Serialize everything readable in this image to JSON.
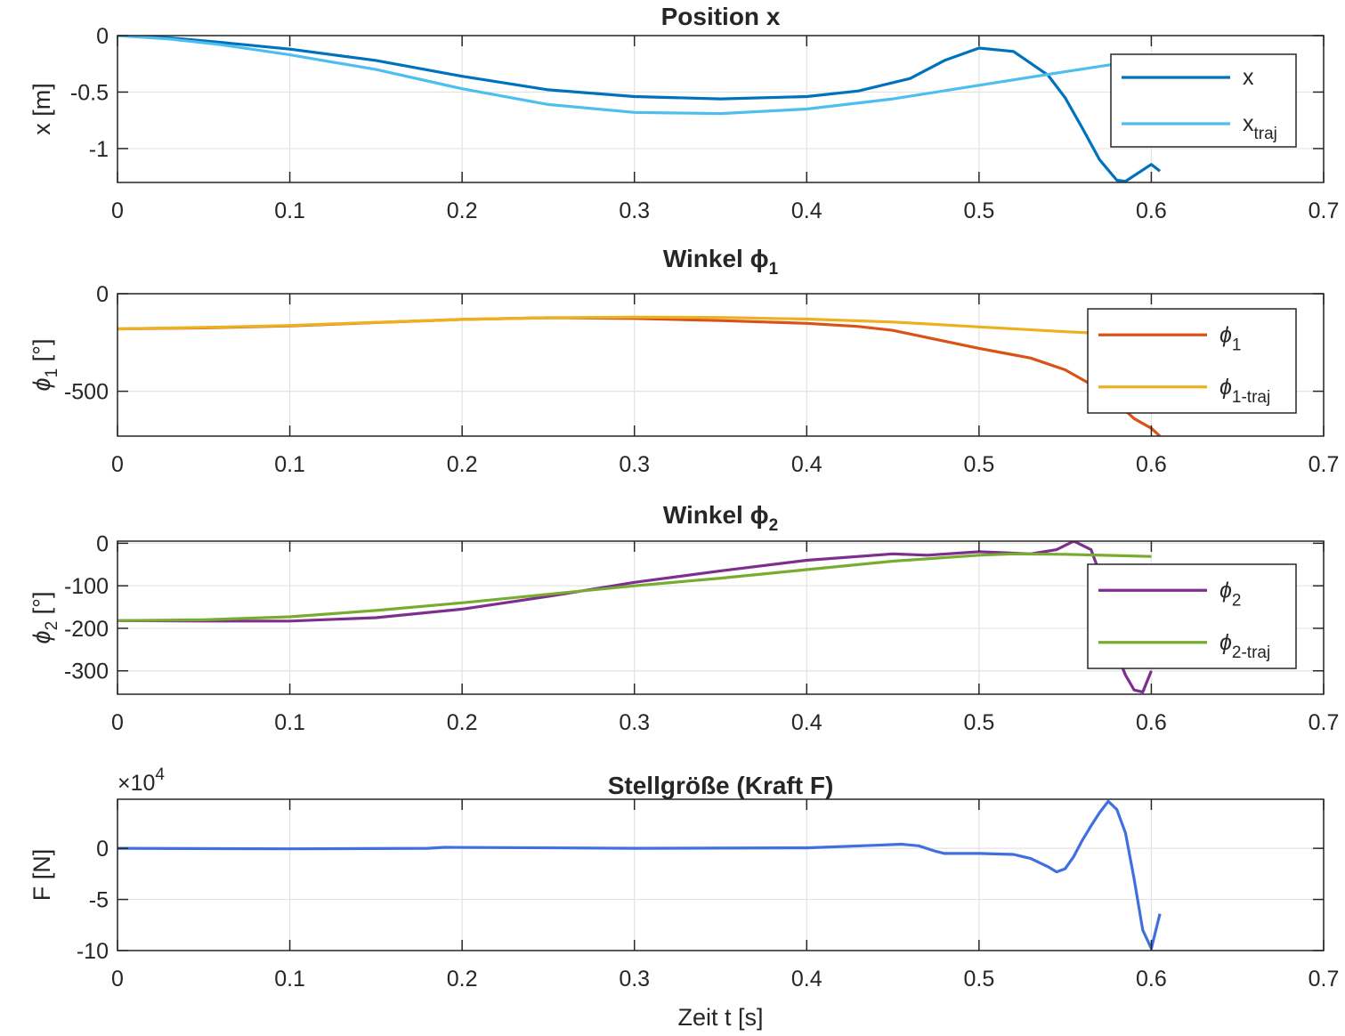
{
  "chart_data": [
    {
      "type": "line",
      "title": "Position x",
      "ylabel": "x [m]",
      "xlabel": "",
      "xlim": [
        0,
        0.7
      ],
      "ylim": [
        -1.3,
        0
      ],
      "xticks": [
        0,
        0.1,
        0.2,
        0.3,
        0.4,
        0.5,
        0.6,
        0.7
      ],
      "xtick_labels": [
        "0",
        "0.1",
        "0.2",
        "0.3",
        "0.4",
        "0.5",
        "0.6",
        "0.7"
      ],
      "yticks": [
        0,
        -0.5,
        -1
      ],
      "ytick_labels": [
        "0",
        "-0.5",
        "-1"
      ],
      "grid": true,
      "legend_position": "top-right",
      "series": [
        {
          "name": "x",
          "label_main": "x",
          "label_sub": "",
          "color": "#0072BD",
          "x": [
            0,
            0.03,
            0.06,
            0.1,
            0.15,
            0.2,
            0.25,
            0.3,
            0.35,
            0.4,
            0.43,
            0.46,
            0.48,
            0.5,
            0.52,
            0.54,
            0.55,
            0.56,
            0.57,
            0.58,
            0.585,
            0.59,
            0.6,
            0.605
          ],
          "y": [
            0,
            -0.02,
            -0.06,
            -0.12,
            -0.22,
            -0.36,
            -0.48,
            -0.54,
            -0.56,
            -0.54,
            -0.49,
            -0.38,
            -0.22,
            -0.11,
            -0.14,
            -0.35,
            -0.55,
            -0.82,
            -1.1,
            -1.28,
            -1.29,
            -1.24,
            -1.14,
            -1.2
          ]
        },
        {
          "name": "x_traj",
          "label_main": "x",
          "label_sub": "traj",
          "color": "#4DBEEE",
          "x": [
            0,
            0.03,
            0.06,
            0.1,
            0.15,
            0.2,
            0.25,
            0.3,
            0.35,
            0.4,
            0.45,
            0.5,
            0.55,
            0.58
          ],
          "y": [
            0,
            -0.03,
            -0.08,
            -0.17,
            -0.3,
            -0.47,
            -0.61,
            -0.68,
            -0.69,
            -0.65,
            -0.56,
            -0.44,
            -0.32,
            -0.25
          ]
        }
      ]
    },
    {
      "type": "line",
      "title_main": "Winkel ϕ",
      "title_sub": "1",
      "ylabel_main": "ϕ",
      "ylabel_sub": "1",
      "ylabel_suffix": " [°]",
      "xlabel": "",
      "xlim": [
        0,
        0.7
      ],
      "ylim": [
        -730,
        0
      ],
      "xticks": [
        0,
        0.1,
        0.2,
        0.3,
        0.4,
        0.5,
        0.6,
        0.7
      ],
      "xtick_labels": [
        "0",
        "0.1",
        "0.2",
        "0.3",
        "0.4",
        "0.5",
        "0.6",
        "0.7"
      ],
      "yticks": [
        0,
        -500
      ],
      "ytick_labels": [
        "0",
        "-500"
      ],
      "grid": true,
      "legend_position": "right",
      "series": [
        {
          "name": "ϕ_1",
          "label_main": "ϕ",
          "label_sub": "1",
          "color": "#D95319",
          "x": [
            0,
            0.05,
            0.1,
            0.15,
            0.2,
            0.25,
            0.3,
            0.35,
            0.4,
            0.43,
            0.45,
            0.47,
            0.5,
            0.53,
            0.55,
            0.57,
            0.58,
            0.59,
            0.6,
            0.605
          ],
          "y": [
            -180,
            -175,
            -165,
            -148,
            -132,
            -123,
            -127,
            -138,
            -152,
            -168,
            -188,
            -225,
            -280,
            -330,
            -390,
            -490,
            -560,
            -640,
            -690,
            -730
          ]
        },
        {
          "name": "ϕ_1-traj",
          "label_main": "ϕ",
          "label_sub": "1-traj",
          "color": "#EDB120",
          "x": [
            0,
            0.05,
            0.1,
            0.15,
            0.2,
            0.25,
            0.3,
            0.35,
            0.4,
            0.45,
            0.5,
            0.55,
            0.575
          ],
          "y": [
            -180,
            -173,
            -163,
            -147,
            -132,
            -123,
            -120,
            -122,
            -130,
            -145,
            -170,
            -195,
            -205
          ]
        }
      ]
    },
    {
      "type": "line",
      "title_main": "Winkel ϕ",
      "title_sub": "2",
      "ylabel_main": "ϕ",
      "ylabel_sub": "2",
      "ylabel_suffix": " [°]",
      "xlabel": "",
      "xlim": [
        0,
        0.7
      ],
      "ylim": [
        -355,
        5
      ],
      "xticks": [
        0,
        0.1,
        0.2,
        0.3,
        0.4,
        0.5,
        0.6,
        0.7
      ],
      "xtick_labels": [
        "0",
        "0.1",
        "0.2",
        "0.3",
        "0.4",
        "0.5",
        "0.6",
        "0.7"
      ],
      "yticks": [
        0,
        -100,
        -200,
        -300
      ],
      "ytick_labels": [
        "0",
        "-100",
        "-200",
        "-300"
      ],
      "grid": true,
      "legend_position": "right",
      "series": [
        {
          "name": "ϕ_2",
          "label_main": "ϕ",
          "label_sub": "2",
          "color": "#7E2F8E",
          "x": [
            0,
            0.05,
            0.1,
            0.15,
            0.2,
            0.25,
            0.3,
            0.35,
            0.4,
            0.45,
            0.47,
            0.5,
            0.53,
            0.545,
            0.555,
            0.565,
            0.57,
            0.575,
            0.58,
            0.585,
            0.59,
            0.595,
            0.6
          ],
          "y": [
            -182,
            -183,
            -183,
            -175,
            -155,
            -125,
            -92,
            -65,
            -40,
            -25,
            -28,
            -20,
            -25,
            -15,
            5,
            -15,
            -70,
            -160,
            -260,
            -310,
            -345,
            -350,
            -300
          ]
        },
        {
          "name": "ϕ_2-traj",
          "label_main": "ϕ",
          "label_sub": "2-traj",
          "color": "#77AC30",
          "x": [
            0,
            0.05,
            0.1,
            0.15,
            0.2,
            0.25,
            0.3,
            0.35,
            0.4,
            0.45,
            0.5,
            0.52,
            0.55,
            0.6
          ],
          "y": [
            -182,
            -180,
            -173,
            -158,
            -140,
            -120,
            -100,
            -82,
            -62,
            -42,
            -28,
            -25,
            -26,
            -31
          ]
        }
      ]
    },
    {
      "type": "line",
      "title": "Stellgröße (Kraft F)",
      "ylabel": "F [N]",
      "xlabel": "Zeit t [s]",
      "exponent_prefix": "×10",
      "exponent_power": "4",
      "xlim": [
        0,
        0.7
      ],
      "ylim": [
        -10,
        4.8
      ],
      "xticks": [
        0,
        0.1,
        0.2,
        0.3,
        0.4,
        0.5,
        0.6,
        0.7
      ],
      "xtick_labels": [
        "0",
        "0.1",
        "0.2",
        "0.3",
        "0.4",
        "0.5",
        "0.6",
        "0.7"
      ],
      "yticks": [
        0,
        -5,
        -10
      ],
      "ytick_labels": [
        "0",
        "-5",
        "-10"
      ],
      "grid": true,
      "series": [
        {
          "name": "F",
          "color": "#4070E0",
          "x": [
            0,
            0.1,
            0.18,
            0.19,
            0.3,
            0.4,
            0.44,
            0.455,
            0.465,
            0.475,
            0.48,
            0.5,
            0.52,
            0.53,
            0.54,
            0.545,
            0.55,
            0.555,
            0.56,
            0.565,
            0.57,
            0.575,
            0.58,
            0.585,
            0.59,
            0.595,
            0.6,
            0.605
          ],
          "y": [
            0,
            -0.05,
            0,
            0.1,
            0,
            0.05,
            0.3,
            0.4,
            0.25,
            -0.3,
            -0.5,
            -0.5,
            -0.6,
            -1.0,
            -1.8,
            -2.3,
            -2.0,
            -0.8,
            0.8,
            2.2,
            3.5,
            4.6,
            3.8,
            1.5,
            -3.0,
            -8.0,
            -9.8,
            -6.4
          ]
        }
      ]
    }
  ]
}
